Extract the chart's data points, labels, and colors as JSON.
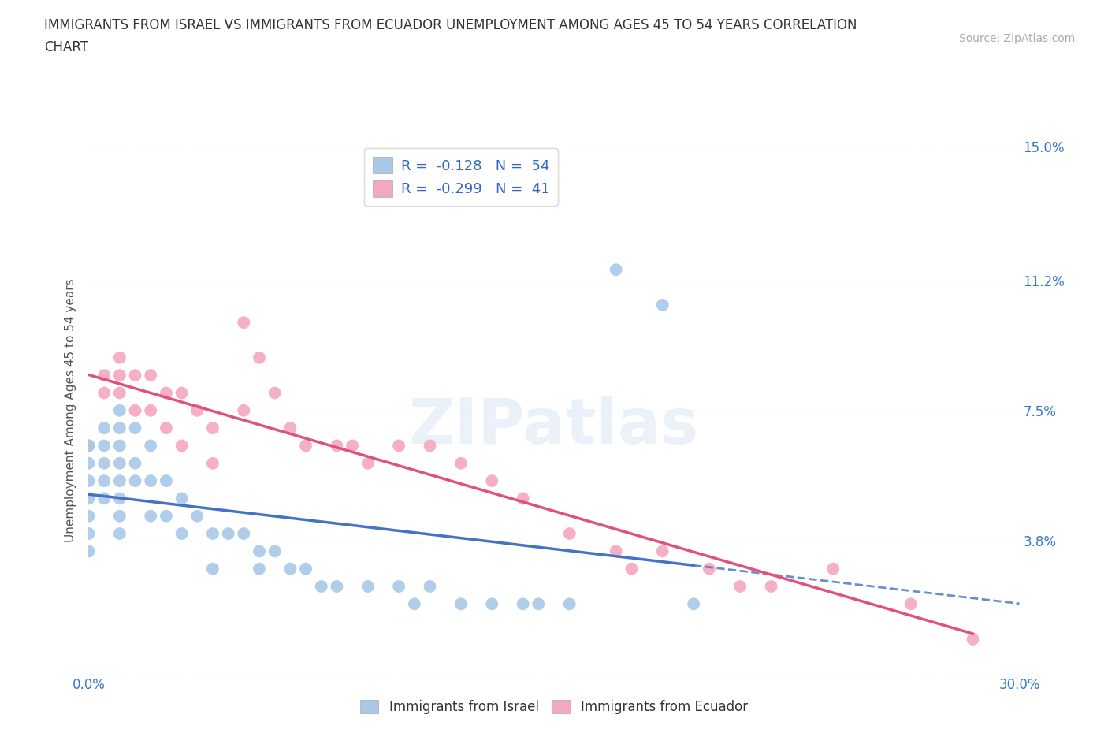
{
  "title_line1": "IMMIGRANTS FROM ISRAEL VS IMMIGRANTS FROM ECUADOR UNEMPLOYMENT AMONG AGES 45 TO 54 YEARS CORRELATION",
  "title_line2": "CHART",
  "source_text": "Source: ZipAtlas.com",
  "ylabel": "Unemployment Among Ages 45 to 54 years",
  "xlim": [
    0.0,
    0.3
  ],
  "ylim": [
    0.0,
    0.15
  ],
  "xticks": [
    0.0,
    0.05,
    0.1,
    0.15,
    0.2,
    0.25,
    0.3
  ],
  "xticklabels": [
    "0.0%",
    "",
    "",
    "",
    "",
    "",
    "30.0%"
  ],
  "yticks": [
    0.0,
    0.038,
    0.075,
    0.112,
    0.15
  ],
  "yticklabels": [
    "",
    "3.8%",
    "7.5%",
    "11.2%",
    "15.0%"
  ],
  "israel_color": "#a8c8e8",
  "ecuador_color": "#f4a8c0",
  "israel_R": -0.128,
  "israel_N": 54,
  "ecuador_R": -0.299,
  "ecuador_N": 41,
  "grid_color": "#cccccc",
  "regression_israel_color": "#4472c4",
  "regression_ecuador_color": "#e05080",
  "watermark_text": "ZIPatlas",
  "israel_x": [
    0.0,
    0.0,
    0.0,
    0.0,
    0.0,
    0.0,
    0.0,
    0.005,
    0.005,
    0.005,
    0.005,
    0.005,
    0.01,
    0.01,
    0.01,
    0.01,
    0.01,
    0.01,
    0.01,
    0.01,
    0.015,
    0.015,
    0.015,
    0.02,
    0.02,
    0.02,
    0.025,
    0.025,
    0.03,
    0.03,
    0.035,
    0.04,
    0.04,
    0.045,
    0.05,
    0.055,
    0.055,
    0.06,
    0.065,
    0.07,
    0.075,
    0.08,
    0.09,
    0.1,
    0.105,
    0.11,
    0.12,
    0.13,
    0.14,
    0.145,
    0.155,
    0.17,
    0.185,
    0.195
  ],
  "israel_y": [
    0.065,
    0.06,
    0.055,
    0.05,
    0.045,
    0.04,
    0.035,
    0.07,
    0.065,
    0.06,
    0.055,
    0.05,
    0.075,
    0.07,
    0.065,
    0.06,
    0.055,
    0.05,
    0.045,
    0.04,
    0.07,
    0.06,
    0.055,
    0.065,
    0.055,
    0.045,
    0.055,
    0.045,
    0.05,
    0.04,
    0.045,
    0.04,
    0.03,
    0.04,
    0.04,
    0.035,
    0.03,
    0.035,
    0.03,
    0.03,
    0.025,
    0.025,
    0.025,
    0.025,
    0.02,
    0.025,
    0.02,
    0.02,
    0.02,
    0.02,
    0.02,
    0.115,
    0.105,
    0.02
  ],
  "ecuador_x": [
    0.0,
    0.005,
    0.005,
    0.01,
    0.01,
    0.01,
    0.015,
    0.015,
    0.02,
    0.02,
    0.025,
    0.025,
    0.03,
    0.03,
    0.035,
    0.04,
    0.04,
    0.05,
    0.05,
    0.055,
    0.06,
    0.065,
    0.07,
    0.08,
    0.085,
    0.09,
    0.1,
    0.11,
    0.12,
    0.13,
    0.14,
    0.155,
    0.17,
    0.175,
    0.185,
    0.2,
    0.21,
    0.22,
    0.24,
    0.265,
    0.285
  ],
  "ecuador_y": [
    0.065,
    0.085,
    0.08,
    0.09,
    0.085,
    0.08,
    0.085,
    0.075,
    0.085,
    0.075,
    0.08,
    0.07,
    0.08,
    0.065,
    0.075,
    0.07,
    0.06,
    0.1,
    0.075,
    0.09,
    0.08,
    0.07,
    0.065,
    0.065,
    0.065,
    0.06,
    0.065,
    0.065,
    0.06,
    0.055,
    0.05,
    0.04,
    0.035,
    0.03,
    0.035,
    0.03,
    0.025,
    0.025,
    0.03,
    0.02,
    0.01
  ]
}
